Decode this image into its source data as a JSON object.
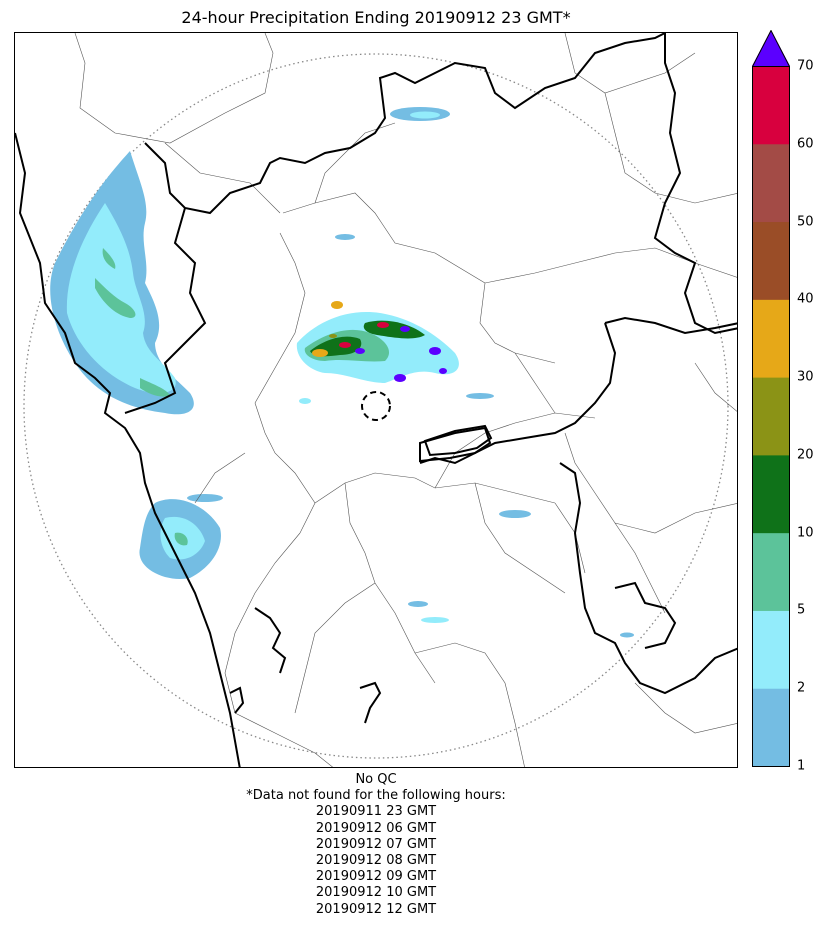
{
  "title": "24-hour Precipitation Ending 20190912 23 GMT*",
  "colorbar": {
    "bins": [
      {
        "min": 1,
        "max": 2,
        "color": "#74bde3"
      },
      {
        "min": 2,
        "max": 5,
        "color": "#93ecfb"
      },
      {
        "min": 5,
        "max": 10,
        "color": "#5cc39a"
      },
      {
        "min": 10,
        "max": 20,
        "color": "#0f7219"
      },
      {
        "min": 20,
        "max": 30,
        "color": "#8b9316"
      },
      {
        "min": 30,
        "max": 40,
        "color": "#e6a818"
      },
      {
        "min": 40,
        "max": 50,
        "color": "#9a4d27"
      },
      {
        "min": 50,
        "max": 60,
        "color": "#a34b46"
      },
      {
        "min": 60,
        "max": 70,
        "color": "#d8003e"
      }
    ],
    "extend_color": "#5b00ff",
    "tick_labels": [
      "1",
      "2",
      "5",
      "10",
      "20",
      "30",
      "40",
      "50",
      "60",
      "70"
    ]
  },
  "notes": {
    "qc": "No QC",
    "missing_header": "*Data not found for the following hours:",
    "missing_hours": [
      "20190911 23 GMT",
      "20190912 06 GMT",
      "20190912 07 GMT",
      "20190912 08 GMT",
      "20190912 09 GMT",
      "20190912 10 GMT",
      "20190912 12 GMT"
    ]
  }
}
